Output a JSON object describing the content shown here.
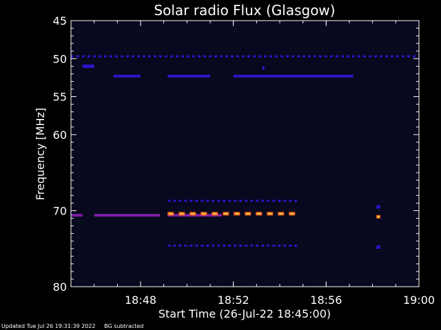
{
  "chart_data": {
    "type": "heatmap",
    "title": "Solar radio Flux (Glasgow)",
    "xlabel": "Start Time (26-Jul-22 18:45:00)",
    "ylabel": "Frequency [MHz]",
    "xlim": [
      "18:45:00",
      "19:00:00"
    ],
    "ylim": [
      80,
      45
    ],
    "x_ticks": [
      "18:48",
      "18:52",
      "18:56",
      "19:00"
    ],
    "y_ticks": [
      45,
      50,
      55,
      60,
      70,
      80
    ],
    "grid": false,
    "legend": "none",
    "colors": {
      "background": "#000000",
      "spectrogram_base": "#08081e",
      "weak_emission": "#2a16c8",
      "moderate_emission": "#7a1fa0",
      "strong_emission": "#ff6a1e",
      "peak_emission": "#ffd24a"
    },
    "emission_features": [
      {
        "freq_mhz": 49.7,
        "start": "18:45:00",
        "end": "19:00:00",
        "intensity": "weak",
        "pattern": "dashed"
      },
      {
        "freq_mhz": 51.0,
        "start": "18:45:30",
        "end": "18:46:00",
        "intensity": "weak",
        "pattern": "spot"
      },
      {
        "freq_mhz": 51.2,
        "start": "18:53:15",
        "end": "18:53:20",
        "intensity": "weak",
        "pattern": "spot"
      },
      {
        "freq_mhz": 52.3,
        "start": "18:46:50",
        "end": "18:48:00",
        "intensity": "weak",
        "pattern": "solid"
      },
      {
        "freq_mhz": 52.3,
        "start": "18:49:10",
        "end": "18:51:00",
        "intensity": "weak",
        "pattern": "solid"
      },
      {
        "freq_mhz": 52.3,
        "start": "18:52:00",
        "end": "18:57:10",
        "intensity": "weak",
        "pattern": "solid"
      },
      {
        "freq_mhz": 68.7,
        "start": "18:49:10",
        "end": "18:54:50",
        "intensity": "weak",
        "pattern": "dashed"
      },
      {
        "freq_mhz": 70.6,
        "start": "18:45:00",
        "end": "18:45:30",
        "intensity": "moderate",
        "pattern": "solid"
      },
      {
        "freq_mhz": 70.6,
        "start": "18:46:00",
        "end": "18:48:50",
        "intensity": "moderate",
        "pattern": "solid"
      },
      {
        "freq_mhz": 70.6,
        "start": "18:49:10",
        "end": "18:51:30",
        "intensity": "moderate",
        "pattern": "solid"
      },
      {
        "freq_mhz": 70.4,
        "start": "18:49:10",
        "end": "18:54:50",
        "intensity": "strong",
        "pattern": "dashed"
      },
      {
        "freq_mhz": 70.8,
        "start": "18:58:10",
        "end": "18:58:20",
        "intensity": "strong",
        "pattern": "spot"
      },
      {
        "freq_mhz": 69.5,
        "start": "18:58:10",
        "end": "18:58:20",
        "intensity": "weak",
        "pattern": "spot"
      },
      {
        "freq_mhz": 74.6,
        "start": "18:49:10",
        "end": "18:54:50",
        "intensity": "weak",
        "pattern": "dashed"
      },
      {
        "freq_mhz": 74.8,
        "start": "18:58:10",
        "end": "18:58:20",
        "intensity": "weak",
        "pattern": "spot"
      }
    ]
  },
  "footer": {
    "updated": "Updated Tue Jul 26 19:31:39 2022",
    "note": "BG subtracted"
  }
}
